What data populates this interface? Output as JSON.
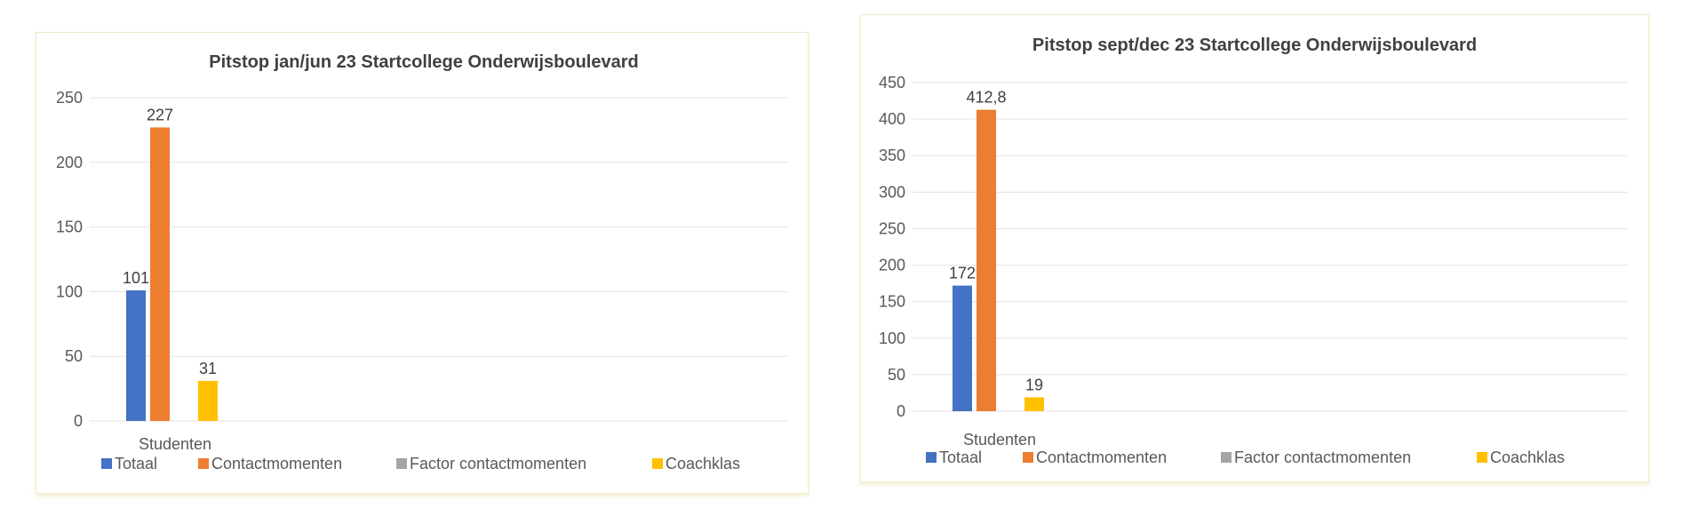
{
  "colors": {
    "Totaal": "#4472c4",
    "Contactmomenten": "#ed7d31",
    "Factor contactmomenten": "#a5a5a5",
    "Coachklas": "#ffc000"
  },
  "chart_data": [
    {
      "type": "bar",
      "title": "Pitstop jan/jun 23 Startcollege Onderwijsboulevard",
      "categories": [
        "Studenten"
      ],
      "series": [
        {
          "name": "Totaal",
          "values": [
            101
          ],
          "label": "101"
        },
        {
          "name": "Contactmomenten",
          "values": [
            227
          ],
          "label": "227"
        },
        {
          "name": "Factor contactmomenten",
          "values": [
            0
          ],
          "label": ""
        },
        {
          "name": "Coachklas",
          "values": [
            31
          ],
          "label": "31"
        }
      ],
      "ylim": [
        0,
        250
      ],
      "yticks": [
        "0",
        "50",
        "100",
        "150",
        "200",
        "250"
      ],
      "ytick_values": [
        0,
        50,
        100,
        150,
        200,
        250
      ],
      "grid": true,
      "legend_position": "bottom"
    },
    {
      "type": "bar",
      "title": "Pitstop sept/dec 23 Startcollege Onderwijsboulevard",
      "categories": [
        "Studenten"
      ],
      "series": [
        {
          "name": "Totaal",
          "values": [
            172
          ],
          "label": "172"
        },
        {
          "name": "Contactmomenten",
          "values": [
            412.8
          ],
          "label": "412,8"
        },
        {
          "name": "Factor contactmomenten",
          "values": [
            0
          ],
          "label": ""
        },
        {
          "name": "Coachklas",
          "values": [
            19
          ],
          "label": "19"
        }
      ],
      "ylim": [
        0,
        450
      ],
      "yticks": [
        "0",
        "50",
        "100",
        "150",
        "200",
        "250",
        "300",
        "350",
        "400",
        "450"
      ],
      "ytick_values": [
        0,
        50,
        100,
        150,
        200,
        250,
        300,
        350,
        400,
        450
      ],
      "grid": true,
      "legend_position": "bottom"
    }
  ]
}
